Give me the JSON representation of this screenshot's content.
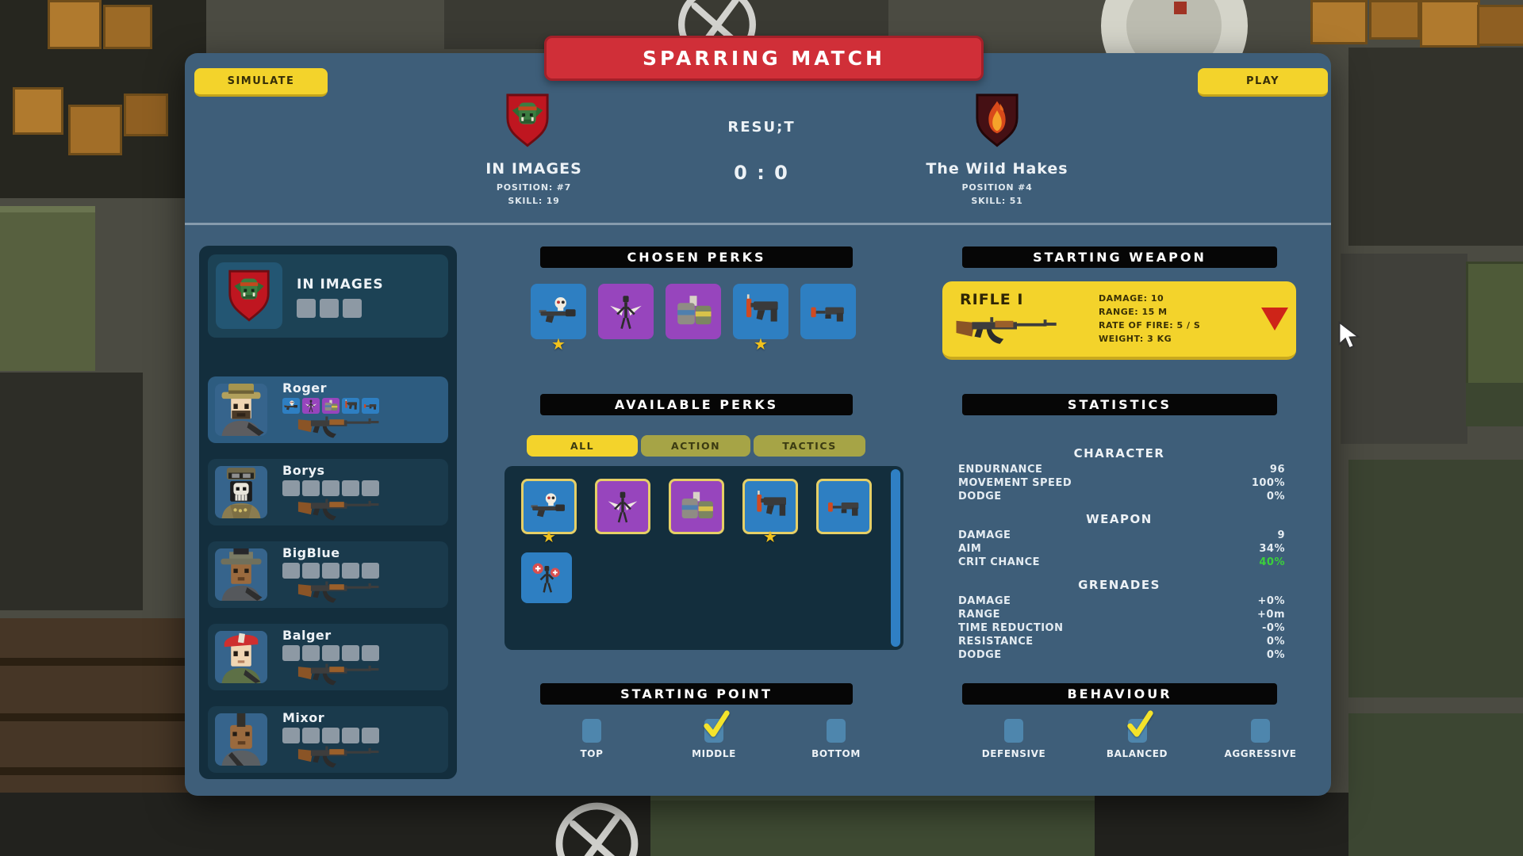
{
  "header": {
    "title": "SPARRING MATCH",
    "simulate_label": "SIMULATE",
    "play_label": "PLAY",
    "result_label": "RESU;T",
    "score": "0 : 0",
    "home_team": {
      "name": "IN IMAGES",
      "position": "POSITION: #7",
      "skill": "SKILL: 19",
      "emblem": "orc-shield"
    },
    "away_team": {
      "name": "The Wild Hakes",
      "position": "POSITION #4",
      "skill": "SKILL: 51",
      "emblem": "fire-shield"
    }
  },
  "sidebar": {
    "team_name": "IN IMAGES",
    "team_slots": 3,
    "players": [
      {
        "name": "Roger",
        "selected": true,
        "portrait": "roger",
        "weapon_icon": "ak-rifle",
        "perk_tiles": [
          {
            "icon": "skull-rifle",
            "bg": "blue"
          },
          {
            "icon": "winged-skeleton",
            "bg": "purple"
          },
          {
            "icon": "ammo-canisters",
            "bg": "purple"
          },
          {
            "icon": "smg-dynamite",
            "bg": "blue"
          },
          {
            "icon": "pistol-rocket",
            "bg": "blue"
          }
        ]
      },
      {
        "name": "Borys",
        "selected": false,
        "portrait": "borys",
        "weapon_icon": "ak-rifle",
        "empty_slots": 5
      },
      {
        "name": "BigBlue",
        "selected": false,
        "portrait": "bigblue",
        "weapon_icon": "ak-rifle",
        "empty_slots": 5
      },
      {
        "name": "Balger",
        "selected": false,
        "portrait": "balger",
        "weapon_icon": "ak-rifle",
        "empty_slots": 5
      },
      {
        "name": "Mixor",
        "selected": false,
        "portrait": "mixor",
        "weapon_icon": "ak-rifle",
        "empty_slots": 5
      }
    ]
  },
  "chosen_perks": {
    "title": "CHOSEN PERKS",
    "perks": [
      {
        "icon": "skull-rifle",
        "bg": "blue",
        "starred": true
      },
      {
        "icon": "winged-skeleton",
        "bg": "purple",
        "starred": false
      },
      {
        "icon": "ammo-canisters",
        "bg": "purple",
        "starred": false
      },
      {
        "icon": "smg-dynamite",
        "bg": "blue",
        "starred": true
      },
      {
        "icon": "pistol-rocket",
        "bg": "blue",
        "starred": false
      }
    ]
  },
  "available_perks": {
    "title": "AVAILABLE PERKS",
    "tabs": [
      {
        "label": "ALL",
        "active": true
      },
      {
        "label": "ACTION",
        "active": false
      },
      {
        "label": "TACTICS",
        "active": false
      }
    ],
    "perks": [
      {
        "icon": "skull-rifle",
        "bg": "blue",
        "bordered": true,
        "starred": true
      },
      {
        "icon": "winged-skeleton",
        "bg": "purple",
        "bordered": true,
        "starred": false
      },
      {
        "icon": "ammo-canisters",
        "bg": "purple",
        "bordered": true,
        "starred": false
      },
      {
        "icon": "smg-dynamite",
        "bg": "blue",
        "bordered": true,
        "starred": true
      },
      {
        "icon": "pistol-rocket",
        "bg": "blue",
        "bordered": true,
        "starred": false
      },
      {
        "icon": "medic-skeleton",
        "bg": "blue",
        "bordered": false,
        "starred": false
      }
    ]
  },
  "starting_weapon": {
    "title": "STARTING WEAPON",
    "name": "RIFLE I",
    "stats": [
      "DAMAGE: 10",
      "RANGE: 15 M",
      "RATE OF FIRE: 5 / S",
      "WEIGHT: 3 KG"
    ]
  },
  "statistics": {
    "title": "STATISTICS",
    "sections": [
      {
        "name": "CHARACTER",
        "rows": [
          {
            "label": "ENDURNANCE",
            "value": "96"
          },
          {
            "label": "MOVEMENT SPEED",
            "value": "100%"
          },
          {
            "label": "DODGE",
            "value": "0%"
          }
        ]
      },
      {
        "name": "WEAPON",
        "rows": [
          {
            "label": "DAMAGE",
            "value": "9"
          },
          {
            "label": "AIM",
            "value": "34%"
          },
          {
            "label": "CRIT CHANCE",
            "value": "40%",
            "color": "#3bd13b"
          }
        ]
      },
      {
        "name": "GRENADES",
        "rows": [
          {
            "label": "DAMAGE",
            "value": "+0%"
          },
          {
            "label": "RANGE",
            "value": "+0m"
          },
          {
            "label": "TIME REDUCTION",
            "value": "-0%"
          },
          {
            "label": "RESISTANCE",
            "value": "0%"
          },
          {
            "label": "DODGE",
            "value": "0%"
          }
        ]
      }
    ]
  },
  "starting_point": {
    "title": "STARTING POINT",
    "options": [
      {
        "label": "TOP",
        "checked": false
      },
      {
        "label": "MIDDLE",
        "checked": true
      },
      {
        "label": "BOTTOM",
        "checked": false
      }
    ]
  },
  "behaviour": {
    "title": "BEHAVIOUR",
    "options": [
      {
        "label": "DEFENSIVE",
        "checked": false
      },
      {
        "label": "BALANCED",
        "checked": true
      },
      {
        "label": "AGGRESSIVE",
        "checked": false
      }
    ]
  },
  "icons": {
    "star_glyph": "★"
  },
  "colors": {
    "panel": "#3e5e79",
    "sidebar": "#132e3d",
    "accent_yellow": "#f3d32b",
    "banner_red": "#d02f38",
    "perk_blue": "#2e7fc2",
    "perk_purple": "#9745bd",
    "crit_green": "#3bd13b",
    "checkbox_blue": "#4e86ad"
  }
}
